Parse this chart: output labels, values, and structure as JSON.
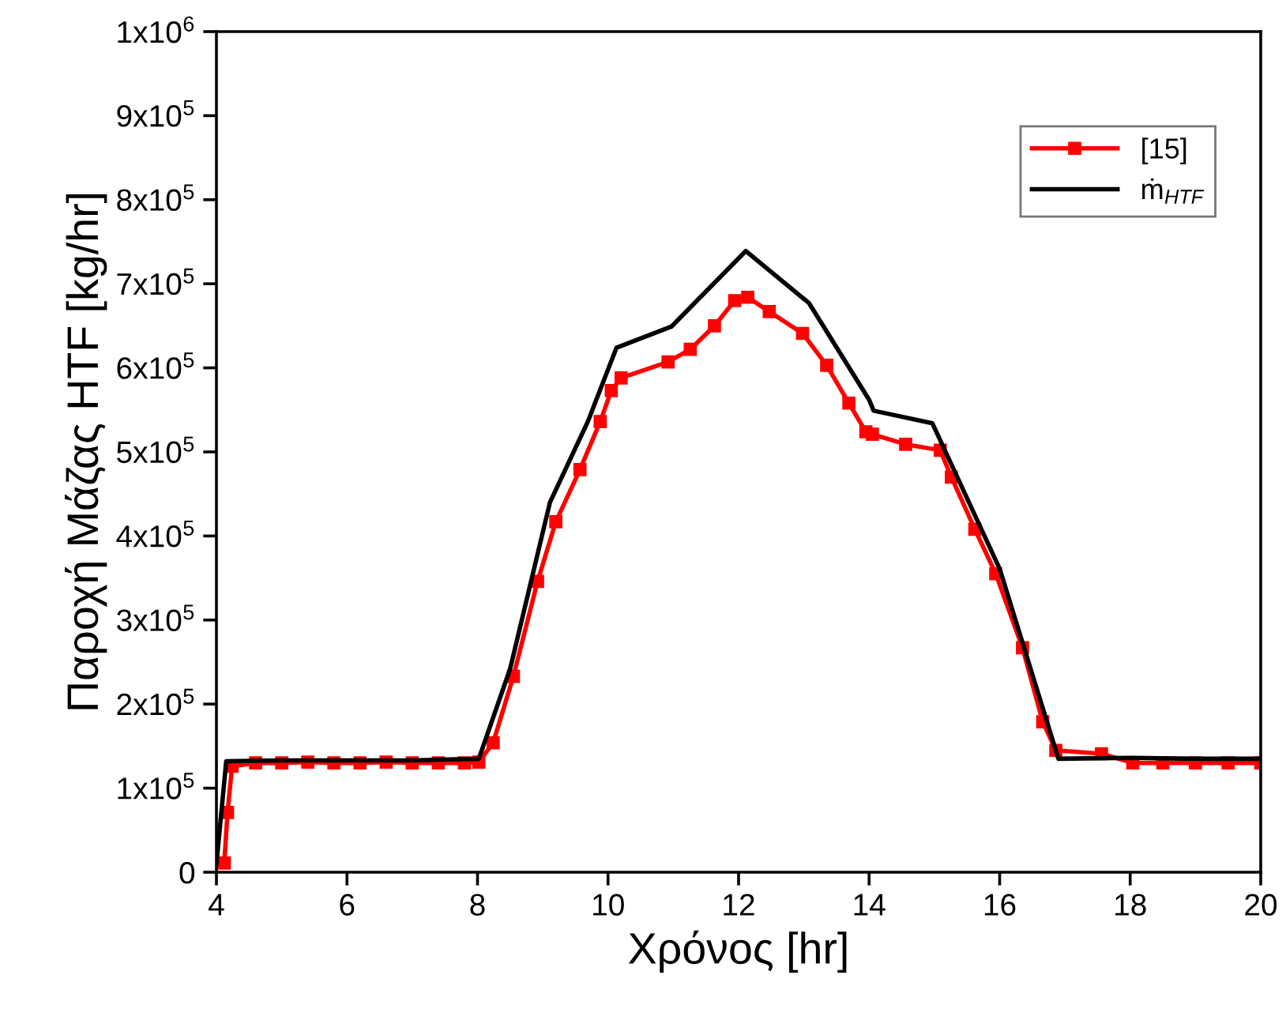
{
  "chart_data": {
    "type": "line",
    "xlabel": "Χρόνος [hr]",
    "ylabel": "Παροχή Μάζας HTF [kg/hr]",
    "xlim": [
      4,
      20
    ],
    "xticks": [
      4,
      6,
      8,
      10,
      12,
      14,
      16,
      18,
      20
    ],
    "ylim": [
      0,
      1000000
    ],
    "yticks": [
      0,
      {
        "value": 100000,
        "label": "1x10$^{5}$"
      },
      {
        "value": 200000,
        "label": "2x10$^{5}$"
      },
      {
        "value": 300000,
        "label": "3x10$^{5}$"
      },
      {
        "value": 400000,
        "label": "4x10$^{5}$"
      },
      {
        "value": 500000,
        "label": "5x10$^{5}$"
      },
      {
        "value": 600000,
        "label": "6x10$^{5}$"
      },
      {
        "value": 700000,
        "label": "7x10$^{5}$"
      },
      {
        "value": 800000,
        "label": "8x10$^{5}$"
      },
      {
        "value": 900000,
        "label": "9x10$^{5}$"
      },
      {
        "value": 1000000,
        "label": "1x10$^{6}$"
      }
    ],
    "grid": false,
    "legend": "top right",
    "series": [
      {
        "name": "[15]",
        "color": "#ff0000",
        "marker": "square",
        "x": [
          4.12,
          4.17,
          4.24,
          4.6,
          5.0,
          5.4,
          5.8,
          6.2,
          6.6,
          7.0,
          7.4,
          7.8,
          8.02,
          8.24,
          8.55,
          8.92,
          9.2,
          9.57,
          9.88,
          10.05,
          10.2,
          10.92,
          11.26,
          11.63,
          11.94,
          12.14,
          12.47,
          12.98,
          13.35,
          13.69,
          13.95,
          14.05,
          14.56,
          15.09,
          15.26,
          15.62,
          15.94,
          16.35,
          16.66,
          16.86,
          17.56,
          18.04,
          18.5,
          19.0,
          19.5,
          20.0
        ],
        "values": [
          11000,
          71000,
          126000,
          130000,
          130000,
          131000,
          130000,
          130000,
          131000,
          130000,
          130000,
          130000,
          131000,
          154000,
          233000,
          346000,
          417000,
          479000,
          536000,
          573000,
          588000,
          607000,
          622000,
          650000,
          680000,
          684000,
          667000,
          641000,
          603000,
          558000,
          524000,
          521000,
          509000,
          502000,
          470000,
          408000,
          355000,
          267000,
          179000,
          145000,
          141000,
          130000,
          130000,
          130000,
          130000,
          130000
        ]
      },
      {
        "name": "ṁ$_{HTF}$",
        "color": "#000000",
        "marker": "none",
        "x": [
          4.0,
          4.15,
          5.0,
          6.0,
          7.0,
          8.02,
          8.5,
          9.11,
          9.69,
          10.13,
          10.97,
          12.11,
          13.08,
          14.0,
          14.07,
          14.97,
          16.0,
          16.9,
          18.0,
          19.0,
          20.0
        ],
        "values": [
          10000,
          132000,
          133000,
          133000,
          133000,
          135000,
          242000,
          440000,
          536000,
          624000,
          649000,
          739000,
          677000,
          562000,
          549000,
          534000,
          361000,
          135000,
          136000,
          135000,
          135000
        ]
      }
    ]
  }
}
